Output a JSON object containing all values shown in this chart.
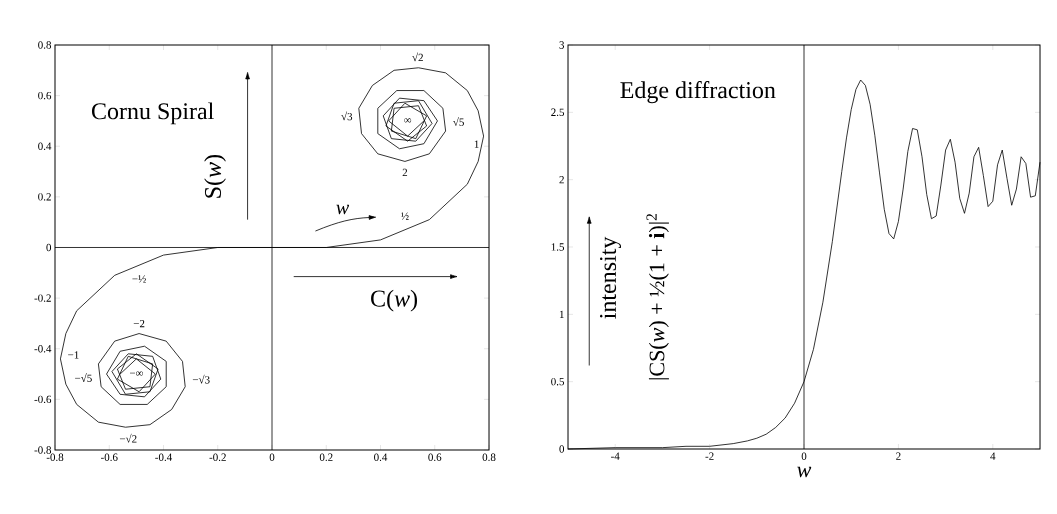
{
  "chart_data": [
    {
      "type": "line",
      "title": "Cornu Spiral",
      "xlabel": "C(*w*)",
      "ylabel": "S(*w*)",
      "xlim": [
        -0.8,
        0.8
      ],
      "ylim": [
        -0.8,
        0.8
      ],
      "xticks": [
        -0.8,
        -0.6,
        -0.4,
        -0.2,
        0,
        0.2,
        0.4,
        0.6,
        0.8
      ],
      "yticks": [
        -0.8,
        -0.6,
        -0.4,
        -0.2,
        0,
        0.2,
        0.4,
        0.6,
        0.8
      ],
      "ref_lines": [
        {
          "axis": "x",
          "value": 0,
          "color": "#000000"
        },
        {
          "axis": "y",
          "value": 0,
          "color": "#000000"
        }
      ],
      "series": [
        {
          "color": "#000000",
          "x": [
            -0.56,
            -0.5,
            -0.43,
            -0.49,
            -0.57,
            -0.53,
            -0.44,
            -0.45,
            -0.54,
            -0.57,
            -0.5,
            -0.42,
            -0.45,
            -0.54,
            -0.59,
            -0.53,
            -0.44,
            -0.41,
            -0.47,
            -0.56,
            -0.61,
            -0.56,
            -0.47,
            -0.39,
            -0.39,
            -0.46,
            -0.56,
            -0.63,
            -0.64,
            -0.58,
            -0.49,
            -0.39,
            -0.33,
            -0.32,
            -0.37,
            -0.45,
            -0.54,
            -0.64,
            -0.72,
            -0.76,
            -0.78,
            -0.76,
            -0.72,
            -0.58,
            -0.4,
            -0.2,
            0,
            0.2,
            0.4,
            0.58,
            0.72,
            0.76,
            0.78,
            0.76,
            0.72,
            0.64,
            0.54,
            0.45,
            0.37,
            0.32,
            0.33,
            0.39,
            0.49,
            0.58,
            0.64,
            0.63,
            0.56,
            0.46,
            0.39,
            0.39,
            0.47,
            0.56,
            0.61,
            0.56,
            0.47,
            0.41,
            0.44,
            0.53,
            0.59,
            0.54,
            0.45,
            0.42,
            0.5,
            0.57,
            0.54,
            0.45,
            0.44,
            0.53,
            0.57,
            0.49,
            0.43,
            0.5,
            0.56
          ],
          "values": [
            -0.5,
            -0.44,
            -0.5,
            -0.57,
            -0.52,
            -0.43,
            -0.46,
            -0.55,
            -0.56,
            -0.48,
            -0.42,
            -0.48,
            -0.57,
            -0.58,
            -0.49,
            -0.42,
            -0.43,
            -0.52,
            -0.59,
            -0.58,
            -0.5,
            -0.41,
            -0.39,
            -0.45,
            -0.55,
            -0.62,
            -0.62,
            -0.55,
            -0.46,
            -0.37,
            -0.34,
            -0.37,
            -0.45,
            -0.55,
            -0.64,
            -0.7,
            -0.71,
            -0.69,
            -0.62,
            -0.54,
            -0.44,
            -0.34,
            -0.25,
            -0.11,
            -0.03,
            0,
            0,
            0,
            0.03,
            0.11,
            0.25,
            0.34,
            0.44,
            0.54,
            0.62,
            0.69,
            0.71,
            0.7,
            0.64,
            0.55,
            0.45,
            0.37,
            0.34,
            0.37,
            0.46,
            0.55,
            0.62,
            0.62,
            0.55,
            0.45,
            0.39,
            0.41,
            0.5,
            0.58,
            0.59,
            0.52,
            0.43,
            0.42,
            0.49,
            0.58,
            0.57,
            0.48,
            0.42,
            0.48,
            0.56,
            0.55,
            0.46,
            0.43,
            0.52,
            0.57,
            0.5,
            0.44,
            0.5
          ]
        }
      ],
      "annotations": [
        "*w*",
        {
          "text": "√2",
          "x": 0.53,
          "y": 0.71
        },
        {
          "text": "√3",
          "x": 0.32,
          "y": 0.52
        },
        {
          "text": "√5",
          "x": 0.64,
          "y": 0.49
        },
        {
          "text": "1",
          "x": 0.78,
          "y": 0.44
        },
        {
          "text": "2",
          "x": 0.49,
          "y": 0.34
        },
        "∞",
        {
          "text": "½",
          "x": 0.49,
          "y": 0.065
        },
        {
          "text": "−½",
          "x": -0.49,
          "y": -0.065
        },
        {
          "text": "−2",
          "x": -0.49,
          "y": -0.34
        },
        {
          "text": "−1",
          "x": -0.78,
          "y": -0.44
        },
        {
          "text": "−√5",
          "x": -0.64,
          "y": -0.49
        },
        {
          "text": "−√3",
          "x": -0.32,
          "y": -0.52
        },
        {
          "text": "−√2",
          "x": -0.53,
          "y": -0.71
        },
        "−∞"
      ]
    },
    {
      "type": "line",
      "title": "Edge diffraction",
      "xlabel": "*w*",
      "ylabel": "intensity",
      "xlim": [
        -5,
        5
      ],
      "ylim": [
        0,
        3
      ],
      "xticks": [
        -4,
        -2,
        0,
        2,
        4
      ],
      "yticks": [
        0,
        0.5,
        1,
        1.5,
        2,
        2.5,
        3
      ],
      "ref_lines": [
        {
          "axis": "x",
          "value": 0,
          "color": "#000000"
        }
      ],
      "series": [
        {
          "color": "#000000",
          "x": [
            -5,
            -4,
            -3,
            -2.5,
            -2,
            -1.5,
            -1.2,
            -1,
            -0.8,
            -0.6,
            -0.4,
            -0.2,
            0,
            0.2,
            0.4,
            0.6,
            0.8,
            0.9,
            1.0,
            1.1,
            1.2,
            1.3,
            1.4,
            1.5,
            1.6,
            1.7,
            1.8,
            1.9,
            2.0,
            2.1,
            2.2,
            2.3,
            2.4,
            2.5,
            2.6,
            2.7,
            2.8,
            2.9,
            3.0,
            3.1,
            3.2,
            3.3,
            3.4,
            3.5,
            3.6,
            3.7,
            3.8,
            3.9,
            4.0,
            4.1,
            4.2,
            4.3,
            4.4,
            4.5,
            4.6,
            4.7,
            4.8,
            4.9,
            5.0
          ],
          "values": [
            0.0,
            0.01,
            0.01,
            0.02,
            0.02,
            0.04,
            0.06,
            0.08,
            0.11,
            0.16,
            0.23,
            0.34,
            0.5,
            0.74,
            1.09,
            1.54,
            2.06,
            2.31,
            2.52,
            2.67,
            2.74,
            2.7,
            2.56,
            2.33,
            2.05,
            1.78,
            1.6,
            1.56,
            1.69,
            1.93,
            2.21,
            2.38,
            2.37,
            2.17,
            1.89,
            1.71,
            1.73,
            1.96,
            2.22,
            2.3,
            2.13,
            1.86,
            1.75,
            1.9,
            2.17,
            2.24,
            2.03,
            1.8,
            1.84,
            2.11,
            2.22,
            2.01,
            1.81,
            1.93,
            2.17,
            2.12,
            1.87,
            1.88,
            2.13
          ]
        }
      ],
      "annotations": [
        "|CS(*w*) + ½(1 + **i**)|$^{2}$"
      ]
    }
  ]
}
